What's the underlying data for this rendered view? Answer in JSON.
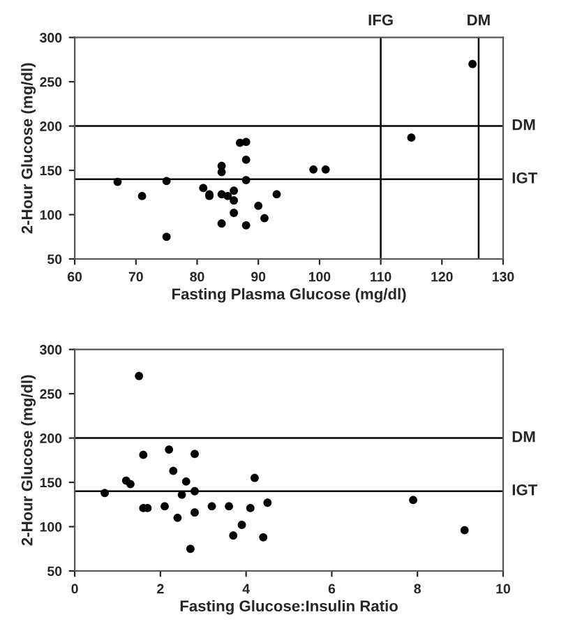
{
  "chart_data": [
    {
      "type": "scatter",
      "xlabel": "Fasting Plasma Glucose (mg/dl)",
      "ylabel": "2-Hour Glucose (mg/dl)",
      "marker": "circle",
      "grid": false,
      "xlim": [
        60,
        130
      ],
      "xticks": [
        60,
        70,
        80,
        90,
        100,
        110,
        120,
        130
      ],
      "ylim": [
        50,
        300
      ],
      "yticks": [
        50,
        100,
        150,
        200,
        250,
        300
      ],
      "series": [
        {
          "color": "#000000",
          "x": [
            67,
            71,
            75,
            75,
            81,
            82,
            82,
            84,
            84,
            84,
            84,
            85,
            86,
            86,
            86,
            87,
            88,
            88,
            88,
            88,
            90,
            91,
            93,
            99,
            101,
            115,
            125
          ],
          "values": [
            137,
            121,
            138,
            75,
            130,
            123,
            121,
            155,
            148,
            123,
            90,
            121,
            127,
            116,
            102,
            181,
            182,
            162,
            139,
            88,
            110,
            96,
            123,
            151,
            151,
            187,
            270
          ]
        }
      ],
      "ref_lines": [
        {
          "axis": "y",
          "value": 200,
          "label": "DM",
          "color": "#000000"
        },
        {
          "axis": "y",
          "value": 140,
          "label": "IGT",
          "color": "#000000"
        },
        {
          "axis": "x",
          "value": 110,
          "label": "IFG",
          "color": "#000000"
        },
        {
          "axis": "x",
          "value": 126,
          "label": "DM",
          "color": "#000000"
        }
      ]
    },
    {
      "type": "scatter",
      "xlabel": "Fasting Glucose:Insulin Ratio",
      "ylabel": "2-Hour Glucose (mg/dl)",
      "marker": "circle",
      "grid": false,
      "xlim": [
        0,
        10
      ],
      "xticks": [
        0,
        2,
        4,
        6,
        8,
        10
      ],
      "ylim": [
        50,
        300
      ],
      "yticks": [
        50,
        100,
        150,
        200,
        250,
        300
      ],
      "series": [
        {
          "color": "#000000",
          "x": [
            0.7,
            1.2,
            1.3,
            1.5,
            1.6,
            1.6,
            1.7,
            2.1,
            2.2,
            2.3,
            2.4,
            2.5,
            2.6,
            2.7,
            2.8,
            2.8,
            2.8,
            3.2,
            3.6,
            3.7,
            3.9,
            4.1,
            4.2,
            4.4,
            4.5,
            7.9,
            9.1
          ],
          "values": [
            138,
            152,
            148,
            270,
            181,
            121,
            121,
            123,
            187,
            163,
            110,
            136,
            151,
            75,
            182,
            140,
            116,
            123,
            123,
            90,
            102,
            121,
            155,
            88,
            127,
            130,
            96
          ]
        }
      ],
      "ref_lines": [
        {
          "axis": "y",
          "value": 200,
          "label": "DM",
          "color": "#000000"
        },
        {
          "axis": "y",
          "value": 140,
          "label": "IGT",
          "color": "#000000"
        }
      ]
    }
  ]
}
